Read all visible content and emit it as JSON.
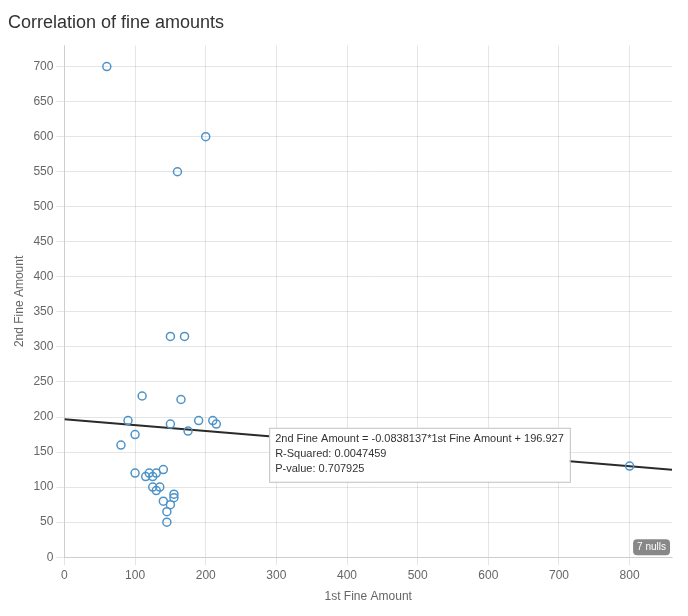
{
  "chart_data": {
    "type": "scatter",
    "title": "Correlation of fine amounts",
    "xlabel": "1st Fine Amount",
    "ylabel": "2nd Fine Amount",
    "series": [
      {
        "type": "scatter",
        "color": "#4e93c8",
        "marker": "circle",
        "x": [
          60,
          80,
          90,
          100,
          100,
          110,
          115,
          120,
          125,
          125,
          130,
          130,
          135,
          140,
          140,
          145,
          145,
          150,
          150,
          150,
          155,
          155,
          160,
          165,
          170,
          175,
          190,
          200,
          210,
          215,
          800
        ],
        "values": [
          700,
          160,
          195,
          120,
          175,
          230,
          115,
          120,
          115,
          100,
          95,
          120,
          100,
          80,
          125,
          65,
          50,
          75,
          315,
          190,
          90,
          85,
          550,
          225,
          315,
          180,
          195,
          600,
          195,
          190,
          130
        ]
      },
      {
        "type": "line",
        "color": "#2a2a2a",
        "line_style": "solid",
        "x": [
          0,
          860
        ],
        "values": [
          196.927,
          124.847218
        ]
      }
    ],
    "xlim": [
      0,
      860
    ],
    "ylim": [
      0,
      730
    ],
    "xticks": [
      0,
      100,
      200,
      300,
      400,
      500,
      600,
      700,
      800
    ],
    "yticks": [
      0,
      50,
      100,
      150,
      200,
      250,
      300,
      350,
      400,
      450,
      500,
      550,
      600,
      650,
      700
    ],
    "grid": true,
    "annotations": [
      {
        "text": "2nd Fine Amount = -0.0838137*1st Fine Amount + 196.927\nR-Squared: 0.0047459\nP-value: 0.707925"
      },
      {
        "text": "7 nulls"
      }
    ]
  }
}
